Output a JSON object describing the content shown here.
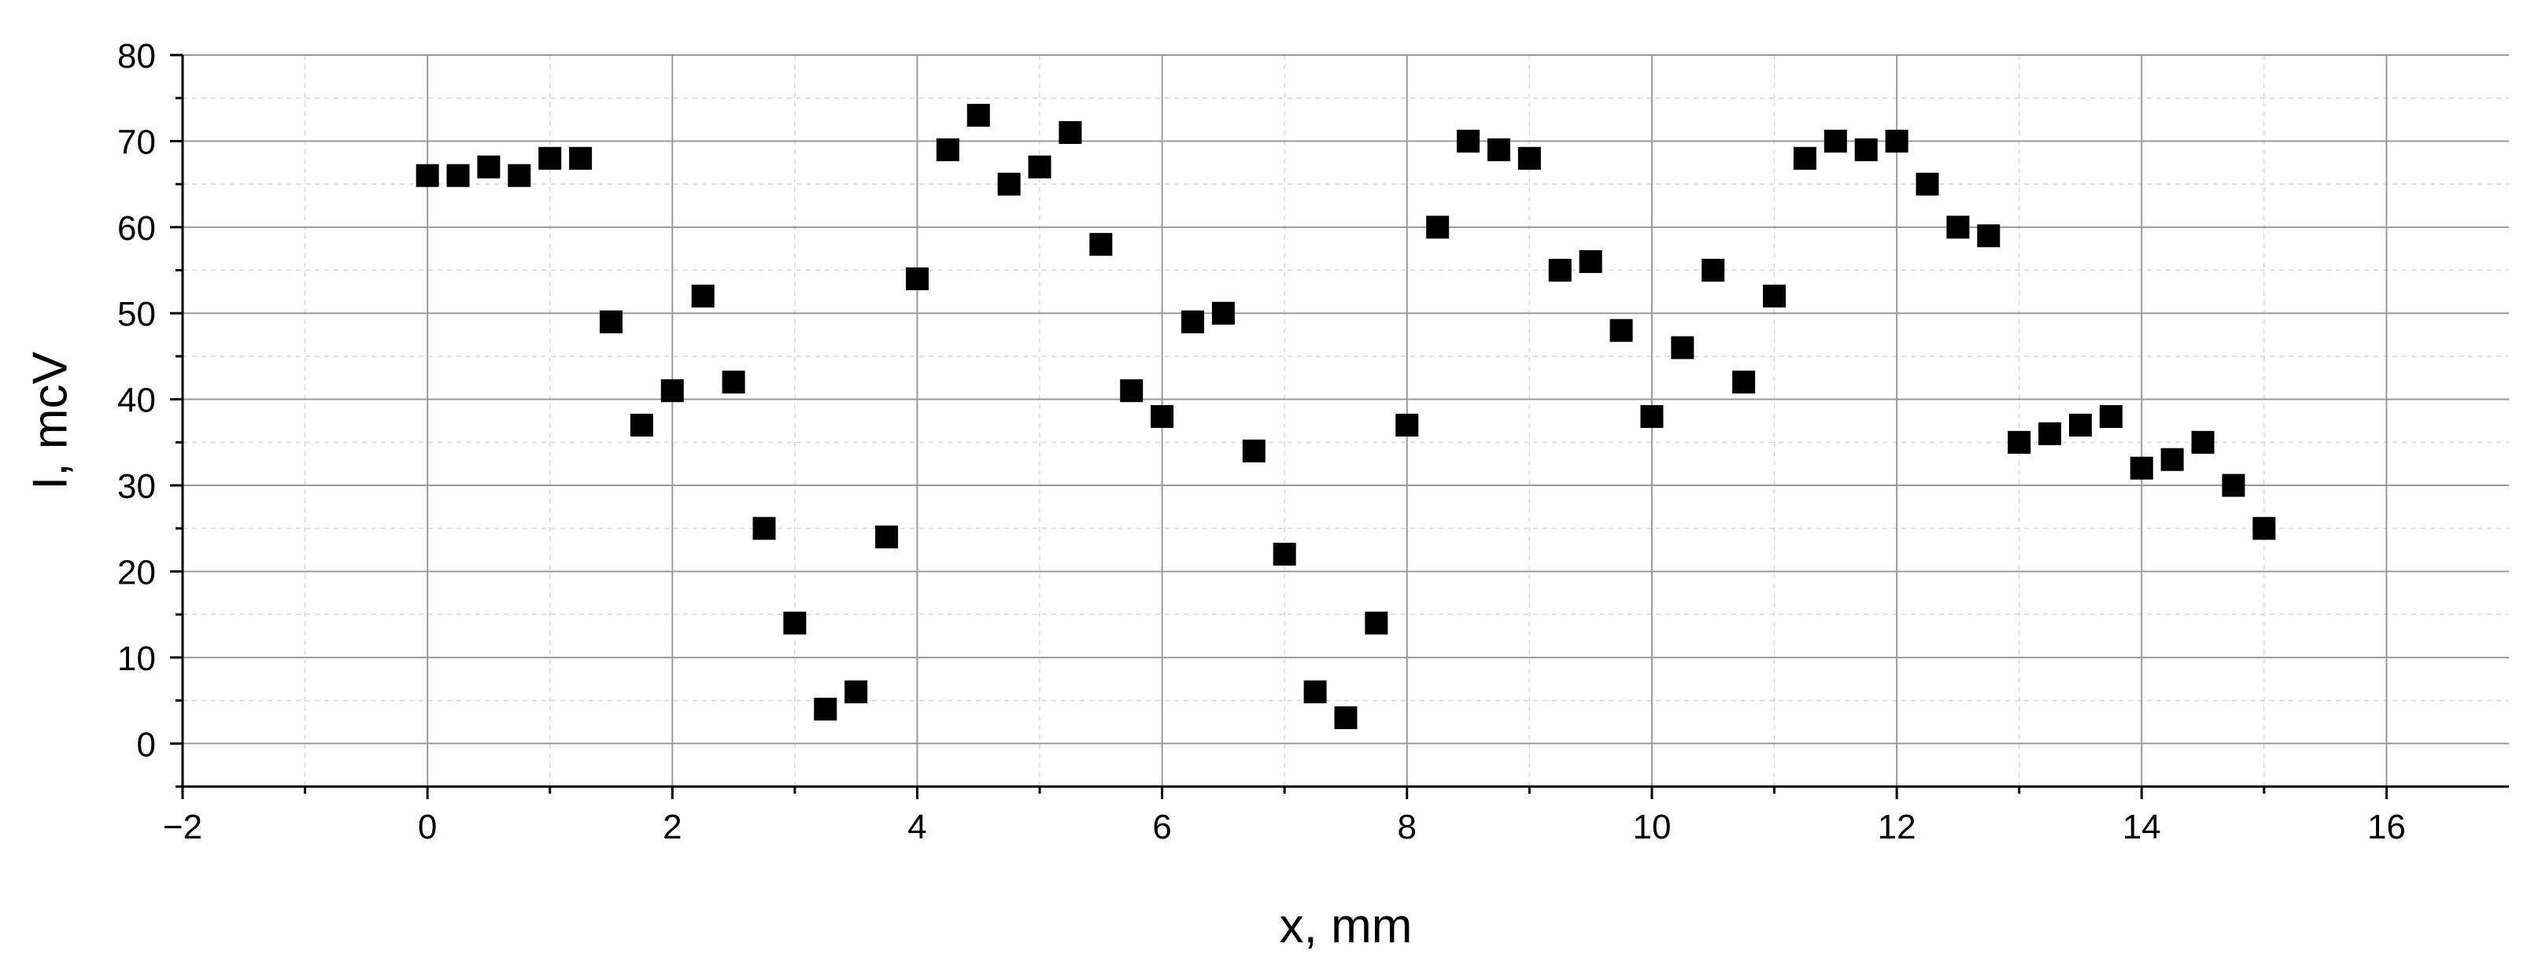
{
  "chart_data": {
    "type": "scatter",
    "xlabel": "x, mm",
    "ylabel": "I, mcV",
    "xlim": [
      -2,
      17
    ],
    "ylim": [
      -5,
      80
    ],
    "x_ticks": [
      -2,
      0,
      2,
      4,
      6,
      8,
      10,
      12,
      14,
      16
    ],
    "x_tick_labels": [
      "−2",
      "0",
      "2",
      "4",
      "6",
      "8",
      "10",
      "12",
      "14",
      "16"
    ],
    "y_ticks": [
      0,
      10,
      20,
      30,
      40,
      50,
      60,
      70,
      80
    ],
    "y_tick_labels": [
      "0",
      "10",
      "20",
      "30",
      "40",
      "50",
      "60",
      "70",
      "80"
    ],
    "grid": true,
    "marker": "square",
    "marker_color": "#000000",
    "x": [
      0,
      0.25,
      0.5,
      0.75,
      1,
      1.25,
      1.5,
      1.75,
      2,
      2.25,
      2.5,
      2.75,
      3,
      3.25,
      3.5,
      3.75,
      4,
      4.25,
      4.5,
      4.75,
      5,
      5.25,
      5.5,
      5.75,
      6,
      6.25,
      6.5,
      6.75,
      7,
      7.25,
      7.5,
      7.75,
      8,
      8.25,
      8.5,
      8.75,
      9,
      9.25,
      9.5,
      9.75,
      10,
      10.25,
      10.5,
      10.75,
      11,
      11.25,
      11.5,
      11.75,
      12,
      12.25,
      12.5,
      12.75,
      13,
      13.25,
      13.5,
      13.75,
      14,
      14.25,
      14.5,
      14.75,
      15
    ],
    "y": [
      66,
      66,
      67,
      66,
      68,
      68,
      49,
      37,
      41,
      52,
      42,
      25,
      14,
      4,
      6,
      24,
      54,
      69,
      73,
      65,
      67,
      71,
      58,
      41,
      38,
      49,
      50,
      34,
      22,
      6,
      3,
      14,
      37,
      60,
      70,
      69,
      68,
      55,
      56,
      48,
      38,
      46,
      55,
      42,
      52,
      68,
      70,
      69,
      70,
      65,
      60,
      59,
      35,
      36,
      37,
      38,
      32,
      33,
      35,
      30,
      25
    ]
  }
}
